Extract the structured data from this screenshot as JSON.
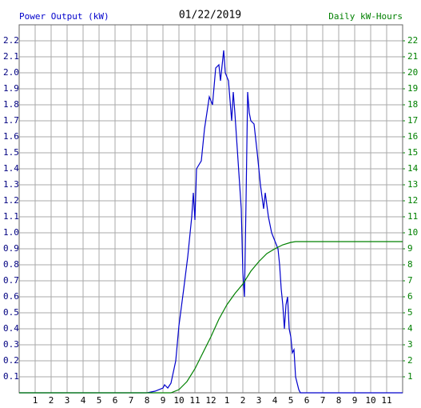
{
  "chart_data": {
    "type": "line",
    "title": "01/22/2019",
    "ylabel": "Power Output (kW)",
    "y2label": "Daily kW-Hours",
    "xlim": [
      0,
      24
    ],
    "xticks": [
      1,
      2,
      3,
      4,
      5,
      6,
      7,
      8,
      9,
      10,
      11,
      12,
      {
        "value": 13,
        "label": "1"
      },
      {
        "value": 14,
        "label": "2"
      },
      {
        "value": 15,
        "label": "3"
      },
      {
        "value": 16,
        "label": "4"
      },
      {
        "value": 17,
        "label": "5"
      },
      {
        "value": 18,
        "label": "6"
      },
      {
        "value": 19,
        "label": "7"
      },
      {
        "value": 20,
        "label": "8"
      },
      {
        "value": 21,
        "label": "9"
      },
      {
        "value": 22,
        "label": "10"
      },
      {
        "value": 23,
        "label": "11"
      }
    ],
    "ylim": [
      0,
      2.3
    ],
    "yticks": [
      0.1,
      0.2,
      0.3,
      0.4,
      0.5,
      0.6,
      0.7,
      0.8,
      0.9,
      {
        "value": 1.0,
        "label": "1.0"
      },
      1.1,
      1.2,
      1.3,
      1.4,
      1.5,
      1.6,
      1.7,
      1.8,
      1.9,
      {
        "value": 2.0,
        "label": "2.0"
      },
      2.1,
      2.2
    ],
    "y2lim": [
      0,
      23
    ],
    "y2ticks": [
      1,
      2,
      3,
      4,
      5,
      6,
      7,
      8,
      9,
      10,
      11,
      12,
      13,
      14,
      15,
      16,
      17,
      18,
      19,
      20,
      21,
      22
    ],
    "grid": true,
    "series": [
      {
        "color": "#0000cc",
        "x": [
          0,
          8.0,
          8.5,
          9.0,
          9.1,
          9.3,
          9.5,
          9.8,
          10.0,
          10.3,
          10.55,
          10.8,
          10.9,
          11.0,
          11.1,
          11.4,
          11.6,
          11.9,
          12.1,
          12.3,
          12.5,
          12.6,
          12.8,
          12.9,
          13.1,
          13.3,
          13.4,
          13.5,
          13.7,
          13.9,
          14.0,
          14.1,
          14.2,
          14.3,
          14.4,
          14.5,
          14.7,
          14.9,
          15.1,
          15.3,
          15.4,
          15.6,
          15.8,
          16.0,
          16.2,
          16.3,
          16.4,
          16.5,
          16.6,
          16.7,
          16.8,
          16.9,
          17.0,
          17.1,
          17.2,
          17.3,
          17.5,
          17.6,
          24
        ],
        "values": [
          0,
          0,
          0.01,
          0.03,
          0.05,
          0.03,
          0.06,
          0.2,
          0.42,
          0.65,
          0.85,
          1.1,
          1.25,
          1.08,
          1.4,
          1.45,
          1.65,
          1.85,
          1.8,
          2.03,
          2.05,
          1.95,
          2.14,
          2.0,
          1.95,
          1.7,
          1.88,
          1.75,
          1.45,
          1.15,
          0.75,
          0.6,
          1.2,
          1.88,
          1.75,
          1.7,
          1.68,
          1.5,
          1.3,
          1.15,
          1.25,
          1.1,
          1.0,
          0.95,
          0.9,
          0.8,
          0.65,
          0.55,
          0.4,
          0.55,
          0.6,
          0.4,
          0.35,
          0.25,
          0.27,
          0.1,
          0.02,
          0,
          0
        ]
      },
      {
        "color": "#008000",
        "axis": "y2",
        "x": [
          0,
          9.5,
          10.0,
          10.5,
          11.0,
          11.5,
          12.0,
          12.5,
          13.0,
          13.5,
          14.0,
          14.5,
          15.0,
          15.5,
          16.0,
          16.5,
          17.0,
          17.3,
          24
        ],
        "values": [
          0,
          0,
          0.2,
          0.7,
          1.5,
          2.5,
          3.5,
          4.6,
          5.5,
          6.2,
          6.8,
          7.6,
          8.2,
          8.7,
          9.0,
          9.25,
          9.4,
          9.45,
          9.45
        ]
      }
    ]
  }
}
